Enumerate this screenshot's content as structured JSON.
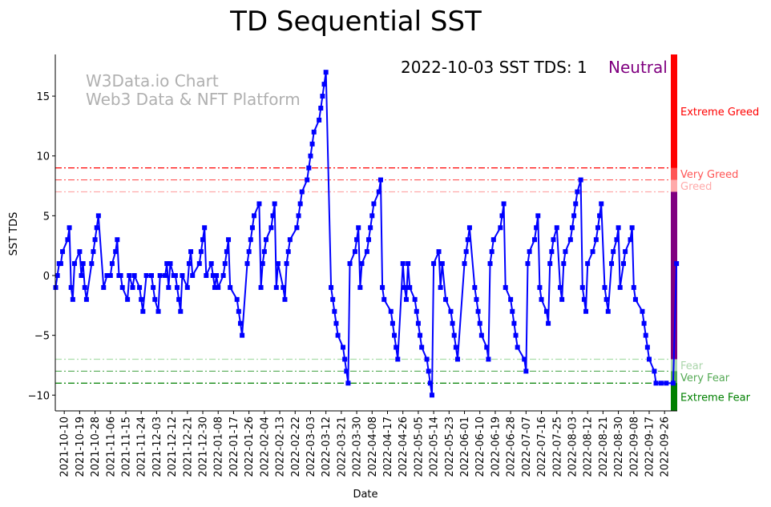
{
  "chart_data": {
    "type": "line",
    "title": "TD Sequential SST",
    "xlabel": "Date",
    "ylabel": "SST TDS",
    "start_date": "2021-10-05",
    "x_unit": "days since start_date",
    "ylim": [
      -11.3,
      18.5
    ],
    "yticks": [
      15,
      10,
      5,
      0,
      -5,
      -10
    ],
    "xticks": [
      "2021-10-10",
      "2021-10-19",
      "2021-10-28",
      "2021-11-06",
      "2021-11-15",
      "2021-11-24",
      "2021-12-03",
      "2021-12-12",
      "2021-12-21",
      "2021-12-30",
      "2022-01-08",
      "2022-01-17",
      "2022-01-26",
      "2022-02-04",
      "2022-02-13",
      "2022-02-22",
      "2022-03-03",
      "2022-03-12",
      "2022-03-21",
      "2022-03-30",
      "2022-04-08",
      "2022-04-17",
      "2022-04-26",
      "2022-05-05",
      "2022-05-14",
      "2022-05-23",
      "2022-06-01",
      "2022-06-10",
      "2022-06-19",
      "2022-06-28",
      "2022-07-07",
      "2022-07-16",
      "2022-07-25",
      "2022-08-03",
      "2022-08-12",
      "2022-08-21",
      "2022-08-30",
      "2022-09-08",
      "2022-09-17",
      "2022-09-26"
    ],
    "series": [
      {
        "name": "SST TDS",
        "color": "#0000ff",
        "points": [
          [
            0,
            -1
          ],
          [
            1,
            0
          ],
          [
            2,
            1
          ],
          [
            3,
            1
          ],
          [
            4,
            2
          ],
          [
            7,
            3
          ],
          [
            8,
            4
          ],
          [
            9,
            -1
          ],
          [
            10,
            -2
          ],
          [
            11,
            1
          ],
          [
            14,
            2
          ],
          [
            15,
            0
          ],
          [
            16,
            1
          ],
          [
            17,
            -1
          ],
          [
            18,
            -2
          ],
          [
            21,
            1
          ],
          [
            22,
            2
          ],
          [
            23,
            3
          ],
          [
            24,
            4
          ],
          [
            25,
            5
          ],
          [
            28,
            -1
          ],
          [
            30,
            0
          ],
          [
            32,
            0
          ],
          [
            33,
            1
          ],
          [
            35,
            2
          ],
          [
            36,
            3
          ],
          [
            37,
            0
          ],
          [
            38,
            0
          ],
          [
            39,
            -1
          ],
          [
            42,
            -2
          ],
          [
            43,
            0
          ],
          [
            45,
            -1
          ],
          [
            46,
            0
          ],
          [
            49,
            -1
          ],
          [
            50,
            -2
          ],
          [
            51,
            -3
          ],
          [
            53,
            0
          ],
          [
            56,
            0
          ],
          [
            57,
            -1
          ],
          [
            58,
            -2
          ],
          [
            60,
            -3
          ],
          [
            61,
            0
          ],
          [
            64,
            0
          ],
          [
            65,
            1
          ],
          [
            66,
            -1
          ],
          [
            67,
            1
          ],
          [
            69,
            0
          ],
          [
            70,
            0
          ],
          [
            71,
            -1
          ],
          [
            72,
            -2
          ],
          [
            73,
            -3
          ],
          [
            74,
            0
          ],
          [
            77,
            -1
          ],
          [
            78,
            1
          ],
          [
            79,
            2
          ],
          [
            80,
            0
          ],
          [
            84,
            1
          ],
          [
            85,
            2
          ],
          [
            86,
            3
          ],
          [
            87,
            4
          ],
          [
            88,
            0
          ],
          [
            91,
            1
          ],
          [
            92,
            0
          ],
          [
            93,
            -1
          ],
          [
            94,
            0
          ],
          [
            95,
            -1
          ],
          [
            98,
            0
          ],
          [
            99,
            1
          ],
          [
            100,
            2
          ],
          [
            101,
            3
          ],
          [
            102,
            -1
          ],
          [
            106,
            -2
          ],
          [
            107,
            -3
          ],
          [
            108,
            -4
          ],
          [
            109,
            -5
          ],
          [
            112,
            1
          ],
          [
            113,
            2
          ],
          [
            114,
            3
          ],
          [
            115,
            4
          ],
          [
            116,
            5
          ],
          [
            119,
            6
          ],
          [
            120,
            -1
          ],
          [
            121,
            1
          ],
          [
            122,
            2
          ],
          [
            123,
            3
          ],
          [
            126,
            4
          ],
          [
            127,
            5
          ],
          [
            128,
            6
          ],
          [
            129,
            -1
          ],
          [
            130,
            1
          ],
          [
            133,
            -1
          ],
          [
            134,
            -2
          ],
          [
            135,
            1
          ],
          [
            136,
            2
          ],
          [
            137,
            3
          ],
          [
            141,
            4
          ],
          [
            142,
            5
          ],
          [
            143,
            6
          ],
          [
            144,
            7
          ],
          [
            147,
            8
          ],
          [
            148,
            9
          ],
          [
            149,
            10
          ],
          [
            150,
            11
          ],
          [
            151,
            12
          ],
          [
            154,
            13
          ],
          [
            155,
            14
          ],
          [
            156,
            15
          ],
          [
            157,
            16
          ],
          [
            158,
            17
          ],
          [
            161,
            -1
          ],
          [
            162,
            -2
          ],
          [
            163,
            -3
          ],
          [
            164,
            -4
          ],
          [
            165,
            -5
          ],
          [
            168,
            -6
          ],
          [
            169,
            -7
          ],
          [
            170,
            -8
          ],
          [
            171,
            -9
          ],
          [
            172,
            1
          ],
          [
            175,
            2
          ],
          [
            176,
            3
          ],
          [
            177,
            4
          ],
          [
            178,
            -1
          ],
          [
            179,
            1
          ],
          [
            182,
            2
          ],
          [
            183,
            3
          ],
          [
            184,
            4
          ],
          [
            185,
            5
          ],
          [
            186,
            6
          ],
          [
            189,
            7
          ],
          [
            190,
            8
          ],
          [
            191,
            -1
          ],
          [
            192,
            -2
          ],
          [
            196,
            -3
          ],
          [
            197,
            -4
          ],
          [
            198,
            -5
          ],
          [
            199,
            -6
          ],
          [
            200,
            -7
          ],
          [
            203,
            1
          ],
          [
            204,
            -1
          ],
          [
            205,
            -2
          ],
          [
            206,
            1
          ],
          [
            207,
            -1
          ],
          [
            210,
            -2
          ],
          [
            211,
            -3
          ],
          [
            212,
            -4
          ],
          [
            213,
            -5
          ],
          [
            214,
            -6
          ],
          [
            217,
            -7
          ],
          [
            218,
            -8
          ],
          [
            219,
            -9
          ],
          [
            220,
            -10
          ],
          [
            221,
            1
          ],
          [
            224,
            2
          ],
          [
            225,
            -1
          ],
          [
            226,
            1
          ],
          [
            228,
            -2
          ],
          [
            231,
            -3
          ],
          [
            232,
            -4
          ],
          [
            233,
            -5
          ],
          [
            234,
            -6
          ],
          [
            235,
            -7
          ],
          [
            239,
            1
          ],
          [
            240,
            2
          ],
          [
            241,
            3
          ],
          [
            242,
            4
          ],
          [
            245,
            -1
          ],
          [
            246,
            -2
          ],
          [
            247,
            -3
          ],
          [
            248,
            -4
          ],
          [
            249,
            -5
          ],
          [
            252,
            -6
          ],
          [
            253,
            -7
          ],
          [
            254,
            1
          ],
          [
            255,
            2
          ],
          [
            256,
            3
          ],
          [
            260,
            4
          ],
          [
            261,
            5
          ],
          [
            262,
            6
          ],
          [
            263,
            -1
          ],
          [
            266,
            -2
          ],
          [
            267,
            -3
          ],
          [
            268,
            -4
          ],
          [
            269,
            -5
          ],
          [
            270,
            -6
          ],
          [
            274,
            -7
          ],
          [
            275,
            -8
          ],
          [
            276,
            1
          ],
          [
            277,
            2
          ],
          [
            280,
            3
          ],
          [
            281,
            4
          ],
          [
            282,
            5
          ],
          [
            283,
            -1
          ],
          [
            284,
            -2
          ],
          [
            287,
            -3
          ],
          [
            288,
            -4
          ],
          [
            289,
            1
          ],
          [
            290,
            2
          ],
          [
            291,
            3
          ],
          [
            293,
            4
          ],
          [
            295,
            -1
          ],
          [
            296,
            -2
          ],
          [
            297,
            1
          ],
          [
            298,
            2
          ],
          [
            301,
            3
          ],
          [
            302,
            4
          ],
          [
            303,
            5
          ],
          [
            304,
            6
          ],
          [
            305,
            7
          ],
          [
            307,
            8
          ],
          [
            308,
            -1
          ],
          [
            309,
            -2
          ],
          [
            310,
            -3
          ],
          [
            311,
            1
          ],
          [
            314,
            2
          ],
          [
            316,
            3
          ],
          [
            317,
            4
          ],
          [
            318,
            5
          ],
          [
            319,
            6
          ],
          [
            321,
            -1
          ],
          [
            322,
            -2
          ],
          [
            323,
            -3
          ],
          [
            325,
            1
          ],
          [
            326,
            2
          ],
          [
            328,
            3
          ],
          [
            329,
            4
          ],
          [
            330,
            -1
          ],
          [
            332,
            1
          ],
          [
            333,
            2
          ],
          [
            336,
            3
          ],
          [
            337,
            4
          ],
          [
            338,
            -1
          ],
          [
            339,
            -2
          ],
          [
            343,
            -3
          ],
          [
            344,
            -4
          ],
          [
            345,
            -5
          ],
          [
            346,
            -6
          ],
          [
            347,
            -7
          ],
          [
            350,
            -8
          ],
          [
            351,
            -9
          ],
          [
            354,
            -9
          ],
          [
            357,
            -9
          ],
          [
            361,
            -9
          ],
          [
            363,
            1
          ]
        ]
      }
    ],
    "thresholds": [
      {
        "value": 9,
        "color": "#ff0000"
      },
      {
        "value": 8,
        "color": "#ff5555"
      },
      {
        "value": 7,
        "color": "#ffaaaa"
      },
      {
        "value": -7,
        "color": "#aaddaa"
      },
      {
        "value": -8,
        "color": "#55aa55"
      },
      {
        "value": -9,
        "color": "#008000"
      }
    ],
    "zones": [
      {
        "label": "Extreme Greed",
        "from": 9,
        "to": 18.5,
        "color": "#ff0000",
        "text_color": "#ff0000"
      },
      {
        "label": "Very Greed",
        "from": 8,
        "to": 9,
        "color": "#ff5555",
        "text_color": "#ff5555"
      },
      {
        "label": "Greed",
        "from": 7,
        "to": 8,
        "color": "#ffaaaa",
        "text_color": "#ffaaaa"
      },
      {
        "label": "",
        "from": -7,
        "to": 7,
        "color": "#800080",
        "text_color": "#800080"
      },
      {
        "label": "Fear",
        "from": -8,
        "to": -7,
        "color": "#aad5aa",
        "text_color": "#aad5aa"
      },
      {
        "label": "Very Fear",
        "from": -9,
        "to": -8,
        "color": "#55aa55",
        "text_color": "#55aa55"
      },
      {
        "label": "Extreme Fear",
        "from": -11.3,
        "to": -9,
        "color": "#008000",
        "text_color": "#008000"
      }
    ],
    "annotation": {
      "text": "2022-10-03 SST TDS: 1",
      "status": "Neutral",
      "status_color": "#800080"
    },
    "watermark": {
      "line1": "W3Data.io Chart",
      "line2": "Web3 Data & NFT Platform"
    },
    "grid": false,
    "legend": "none"
  }
}
